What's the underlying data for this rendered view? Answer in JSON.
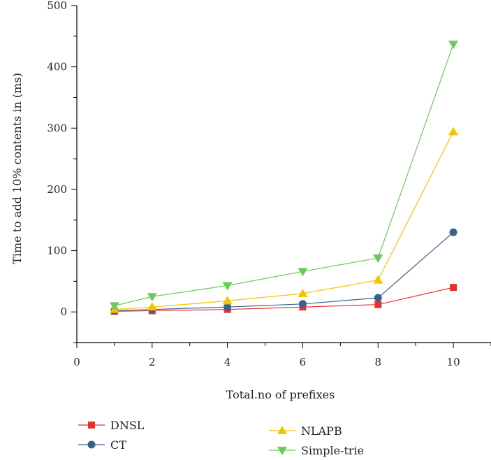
{
  "chart_data": {
    "type": "line",
    "title": "",
    "xlabel": "Total.no of prefixes",
    "ylabel": "Time to add 10% contents in (ms)",
    "xlim": [
      0,
      11
    ],
    "ylim": [
      -50,
      500
    ],
    "xticks": [
      0,
      2,
      4,
      6,
      8,
      10
    ],
    "yticks": [
      0,
      100,
      200,
      300,
      400,
      500
    ],
    "x": [
      1,
      2,
      4,
      6,
      8,
      10
    ],
    "series": [
      {
        "name": "DNSL",
        "color": "#e8312f",
        "marker": "square",
        "values": [
          1,
          2,
          4,
          8,
          12,
          40
        ]
      },
      {
        "name": "CT",
        "color": "#3b5f8e",
        "marker": "circle",
        "values": [
          2,
          4,
          8,
          13,
          23,
          130
        ]
      },
      {
        "name": "NLAPB",
        "color": "#f5c400",
        "marker": "triangle-up",
        "values": [
          4,
          8,
          18,
          30,
          52,
          294
        ]
      },
      {
        "name": "Simple-trie",
        "color": "#6cc95c",
        "marker": "triangle-down",
        "values": [
          10,
          25,
          43,
          66,
          88,
          437
        ]
      }
    ],
    "grid": false,
    "legend_position": "bottom"
  }
}
